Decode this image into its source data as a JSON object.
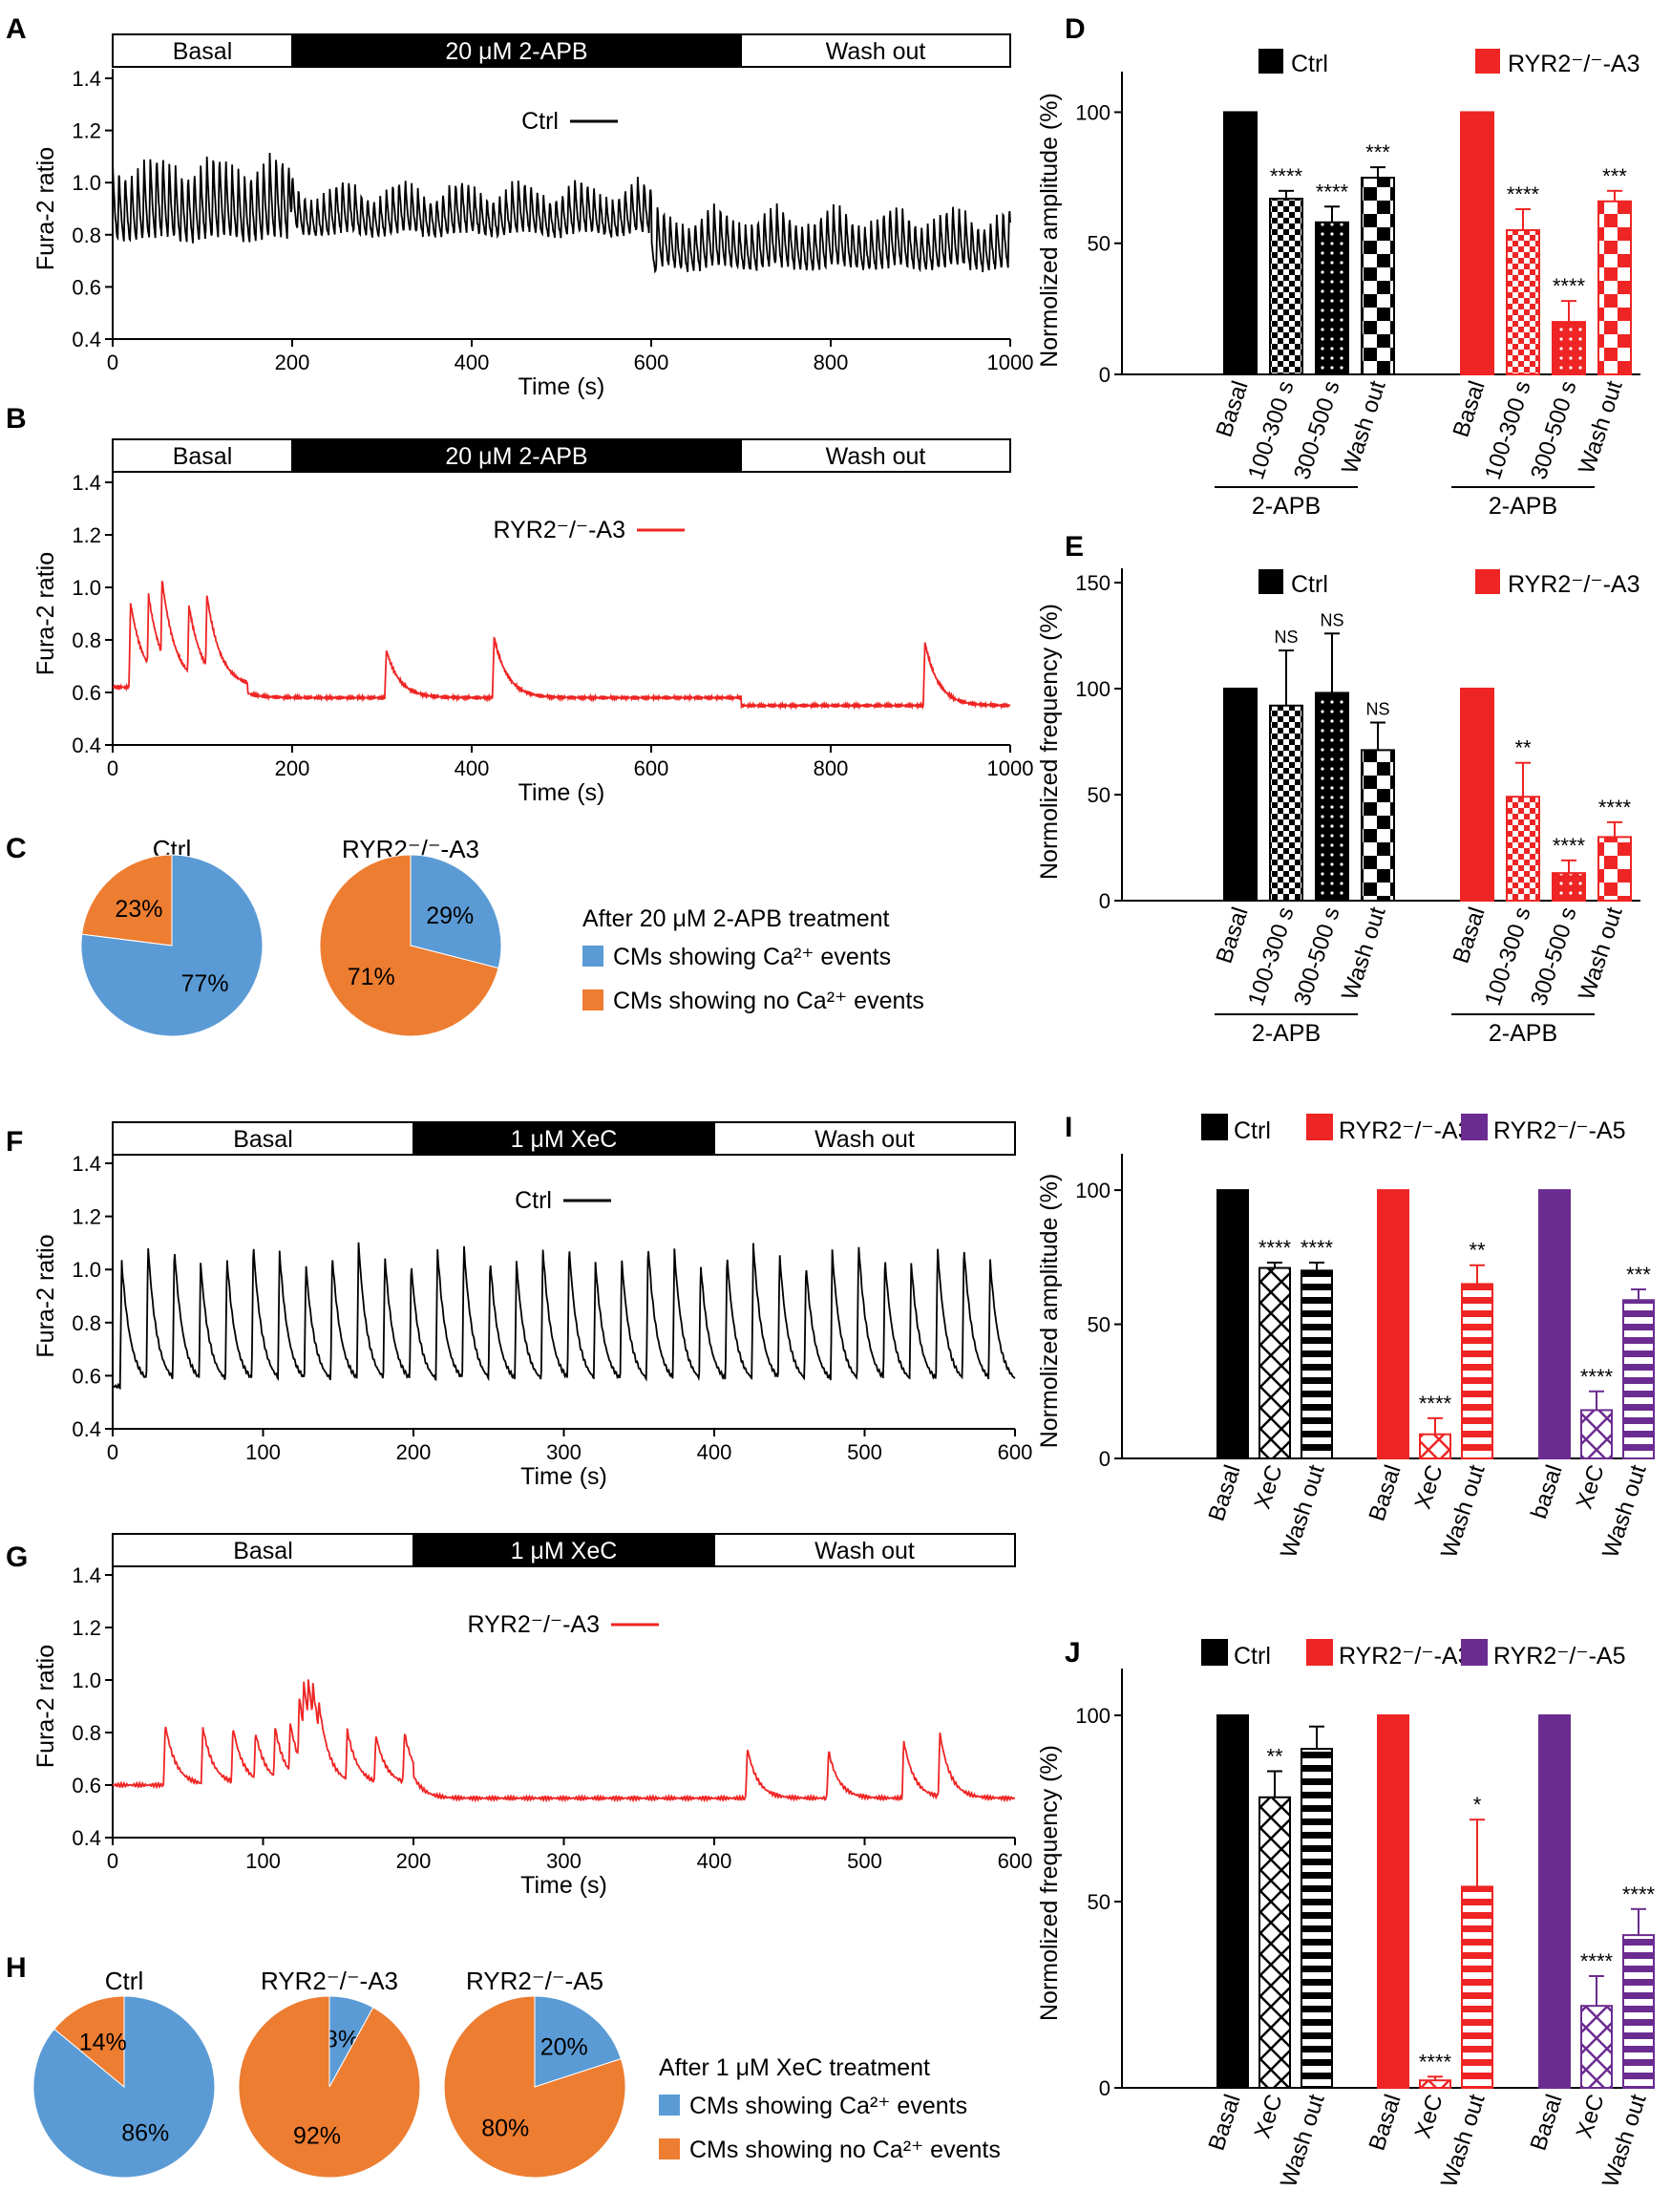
{
  "colors": {
    "ctrl": "#000000",
    "a3": "#ee2524",
    "a5": "#6b2c91",
    "blue": "#5b9bd5",
    "orange": "#ed7d31"
  },
  "panel_letters": [
    "A",
    "B",
    "C",
    "D",
    "E",
    "F",
    "G",
    "H",
    "I",
    "J"
  ],
  "chart_data": [
    {
      "id": "A",
      "type": "line",
      "bars": [
        "Basal",
        "20 μM 2-APB",
        "Wash out"
      ],
      "bar_ranges": [
        [
          0,
          200
        ],
        [
          200,
          700
        ],
        [
          700,
          1000
        ]
      ],
      "legend": "Ctrl",
      "xlabel": "Time (s)",
      "ylabel": "Fura-2 ratio",
      "xlim": [
        0,
        1000
      ],
      "ylim": [
        0.4,
        1.4
      ],
      "xticks": [
        0,
        200,
        400,
        600,
        800,
        1000
      ],
      "yticks": [
        0.4,
        0.6,
        0.8,
        1.0,
        1.2,
        1.4
      ],
      "series": [
        {
          "name": "Ctrl",
          "color": "#000000",
          "baseline_segments": [
            [
              0,
              200,
              0.68
            ],
            [
              200,
              600,
              0.74
            ],
            [
              600,
              1000,
              0.6
            ]
          ],
          "spikes": [
            {
              "from": 0,
              "to": 200,
              "interval": 7,
              "peak": 1.08
            },
            {
              "from": 200,
              "to": 600,
              "interval": 7,
              "peak": 0.98
            },
            {
              "from": 600,
              "to": 1000,
              "interval": 7,
              "peak": 0.88
            }
          ],
          "decay": 4
        }
      ]
    },
    {
      "id": "B",
      "type": "line",
      "bars": [
        "Basal",
        "20 μM 2-APB",
        "Wash out"
      ],
      "bar_ranges": [
        [
          0,
          200
        ],
        [
          200,
          700
        ],
        [
          700,
          1000
        ]
      ],
      "legend": "RYR2⁻/⁻-A3",
      "xlabel": "Time (s)",
      "ylabel": "Fura-2 ratio",
      "xlim": [
        0,
        1000
      ],
      "ylim": [
        0.4,
        1.4
      ],
      "xticks": [
        0,
        200,
        400,
        600,
        800,
        1000
      ],
      "yticks": [
        0.4,
        0.6,
        0.8,
        1.0,
        1.2,
        1.4
      ],
      "series": [
        {
          "name": "RYR2⁻/⁻-A3",
          "color": "#ee2524",
          "baseline_segments": [
            [
              0,
              150,
              0.62
            ],
            [
              150,
              700,
              0.58
            ],
            [
              700,
              1000,
              0.55
            ]
          ],
          "events": [
            [
              20,
              0.94
            ],
            [
              40,
              0.97
            ],
            [
              55,
              1.03
            ],
            [
              85,
              0.93
            ],
            [
              105,
              0.97
            ],
            [
              305,
              0.76
            ],
            [
              425,
              0.81
            ],
            [
              905,
              0.79
            ]
          ],
          "decay": 15
        }
      ]
    },
    {
      "id": "C",
      "type": "pie",
      "pies": [
        {
          "title": "Ctrl",
          "slices": [
            {
              "label": "CMs showing Ca²⁺ events",
              "value": 77,
              "text": "77%"
            },
            {
              "label": "CMs showing no Ca²⁺ events",
              "value": 23,
              "text": "23%"
            }
          ]
        },
        {
          "title": "RYR2⁻/⁻-A3",
          "slices": [
            {
              "label": "CMs showing Ca²⁺ events",
              "value": 29,
              "text": "29%"
            },
            {
              "label": "CMs showing no Ca²⁺ events",
              "value": 71,
              "text": "71%"
            }
          ]
        }
      ],
      "legend_title": "After 20 μM 2-APB treatment",
      "legend": [
        "CMs showing Ca²⁺ events",
        "CMs showing no Ca²⁺ events"
      ]
    },
    {
      "id": "D",
      "type": "bar",
      "ylabel": "Normolized amplitude (%)",
      "ylim": [
        0,
        110
      ],
      "yticks": [
        0,
        50,
        100
      ],
      "categories": [
        "Basal",
        "100-300 s",
        "300-500 s",
        "Wash out"
      ],
      "group_label": "2-APB",
      "series": [
        {
          "name": "Ctrl",
          "values": [
            100,
            67,
            58,
            75
          ],
          "errors": [
            0,
            3,
            6,
            4
          ],
          "sig": [
            "",
            "****",
            "****",
            "***"
          ]
        },
        {
          "name": "RYR2⁻/⁻-A3",
          "values": [
            100,
            55,
            20,
            66
          ],
          "errors": [
            0,
            8,
            8,
            4
          ],
          "sig": [
            "",
            "****",
            "****",
            "***"
          ]
        }
      ]
    },
    {
      "id": "E",
      "type": "bar",
      "ylabel": "Normolized frequency (%)",
      "ylim": [
        0,
        150
      ],
      "yticks": [
        0,
        50,
        100,
        150
      ],
      "categories": [
        "Basal",
        "100-300 s",
        "300-500 s",
        "Wash out"
      ],
      "group_label": "2-APB",
      "series": [
        {
          "name": "Ctrl",
          "values": [
            100,
            92,
            98,
            71
          ],
          "errors": [
            0,
            26,
            28,
            13
          ],
          "sig": [
            "",
            "NS",
            "NS",
            "NS"
          ]
        },
        {
          "name": "RYR2⁻/⁻-A3",
          "values": [
            100,
            49,
            13,
            30
          ],
          "errors": [
            0,
            16,
            6,
            7
          ],
          "sig": [
            "",
            "**",
            "****",
            "****"
          ]
        }
      ]
    },
    {
      "id": "F",
      "type": "line",
      "bars": [
        "Basal",
        "1 μM XeC",
        "Wash out"
      ],
      "bar_ranges": [
        [
          0,
          200
        ],
        [
          200,
          400
        ],
        [
          400,
          600
        ]
      ],
      "legend": "Ctrl",
      "xlabel": "Time (s)",
      "ylabel": "Fura-2 ratio",
      "xlim": [
        0,
        600
      ],
      "ylim": [
        0.4,
        1.4
      ],
      "xticks": [
        0,
        100,
        200,
        300,
        400,
        500,
        600
      ],
      "yticks": [
        0.4,
        0.6,
        0.8,
        1.0,
        1.2,
        1.4
      ],
      "series": [
        {
          "name": "Ctrl",
          "color": "#000000",
          "baseline_segments": [
            [
              0,
              600,
              0.56
            ]
          ],
          "spikes": [
            {
              "from": 6,
              "to": 600,
              "interval": 17.5,
              "peak": 1.06
            }
          ],
          "decay": 6
        }
      ]
    },
    {
      "id": "G",
      "type": "line",
      "bars": [
        "Basal",
        "1 μM XeC",
        "Wash out"
      ],
      "bar_ranges": [
        [
          0,
          200
        ],
        [
          200,
          400
        ],
        [
          400,
          600
        ]
      ],
      "legend": "RYR2⁻/⁻-A3",
      "xlabel": "Time (s)",
      "ylabel": "Fura-2 ratio",
      "xlim": [
        0,
        600
      ],
      "ylim": [
        0.4,
        1.4
      ],
      "xticks": [
        0,
        100,
        200,
        300,
        400,
        500,
        600
      ],
      "yticks": [
        0.4,
        0.6,
        0.8,
        1.0,
        1.2,
        1.4
      ],
      "series": [
        {
          "name": "RYR2⁻/⁻-A3",
          "color": "#ee2524",
          "baseline_segments": [
            [
              0,
              200,
              0.6
            ],
            [
              200,
              600,
              0.55
            ]
          ],
          "events": [
            [
              35,
              0.83
            ],
            [
              60,
              0.82
            ],
            [
              80,
              0.82
            ],
            [
              95,
              0.8
            ],
            [
              108,
              0.82
            ],
            [
              118,
              0.84
            ],
            [
              124,
              0.94
            ],
            [
              127,
              1.0
            ],
            [
              130,
              1.01
            ],
            [
              133,
              0.99
            ],
            [
              137,
              0.92
            ],
            [
              156,
              0.81
            ],
            [
              175,
              0.79
            ],
            [
              194,
              0.8
            ],
            [
              422,
              0.74
            ],
            [
              476,
              0.73
            ],
            [
              526,
              0.77
            ],
            [
              550,
              0.8
            ]
          ],
          "decay": 7
        }
      ]
    },
    {
      "id": "H",
      "type": "pie",
      "pies": [
        {
          "title": "Ctrl",
          "slices": [
            {
              "label": "CMs showing Ca²⁺ events",
              "value": 86,
              "text": "86%"
            },
            {
              "label": "CMs showing no Ca²⁺ events",
              "value": 14,
              "text": "14%"
            }
          ]
        },
        {
          "title": "RYR2⁻/⁻-A3",
          "slices": [
            {
              "label": "CMs showing Ca²⁺ events",
              "value": 8,
              "text": "8%"
            },
            {
              "label": "CMs showing no Ca²⁺ events",
              "value": 92,
              "text": "92%"
            }
          ]
        },
        {
          "title": "RYR2⁻/⁻-A5",
          "slices": [
            {
              "label": "CMs showing Ca²⁺ events",
              "value": 20,
              "text": "20%"
            },
            {
              "label": "CMs showing no Ca²⁺ events",
              "value": 80,
              "text": "80%"
            }
          ]
        }
      ],
      "legend_title": "After  1 μM XeC treatment",
      "legend": [
        "CMs showing Ca²⁺ events",
        "CMs showing no Ca²⁺ events"
      ]
    },
    {
      "id": "I",
      "type": "bar",
      "ylabel": "Normolized amplitude (%)",
      "ylim": [
        0,
        110
      ],
      "yticks": [
        0,
        50,
        100
      ],
      "series": [
        {
          "name": "Ctrl",
          "categories": [
            "Basal",
            "XeC",
            "Wash out"
          ],
          "values": [
            100,
            71,
            70
          ],
          "errors": [
            0,
            2,
            3
          ],
          "sig": [
            "",
            "****",
            "****"
          ]
        },
        {
          "name": "RYR2⁻/⁻-A3",
          "categories": [
            "Basal",
            "XeC",
            "Wash out"
          ],
          "values": [
            100,
            9,
            65
          ],
          "errors": [
            0,
            6,
            7
          ],
          "sig": [
            "",
            "****",
            "**"
          ]
        },
        {
          "name": "RYR2⁻/⁻-A5",
          "categories": [
            "basal",
            "XeC",
            "Wash out"
          ],
          "values": [
            100,
            18,
            59
          ],
          "errors": [
            0,
            7,
            4
          ],
          "sig": [
            "",
            "****",
            "***"
          ]
        }
      ]
    },
    {
      "id": "J",
      "type": "bar",
      "ylabel": "Normolized frequency (%)",
      "ylim": [
        0,
        110
      ],
      "yticks": [
        0,
        50,
        100
      ],
      "series": [
        {
          "name": "Ctrl",
          "categories": [
            "Basal",
            "XeC",
            "Wash out"
          ],
          "values": [
            100,
            78,
            91
          ],
          "errors": [
            0,
            7,
            6
          ],
          "sig": [
            "",
            "**",
            ""
          ]
        },
        {
          "name": "RYR2⁻/⁻-A3",
          "categories": [
            "Basal",
            "XeC",
            "Wash out"
          ],
          "values": [
            100,
            2,
            54
          ],
          "errors": [
            0,
            1,
            18
          ],
          "sig": [
            "",
            "****",
            "*"
          ]
        },
        {
          "name": "RYR2⁻/⁻-A5",
          "categories": [
            "Basal",
            "XeC",
            "Wash out"
          ],
          "values": [
            100,
            22,
            41
          ],
          "errors": [
            0,
            8,
            7
          ],
          "sig": [
            "",
            "****",
            "****"
          ]
        }
      ]
    }
  ]
}
